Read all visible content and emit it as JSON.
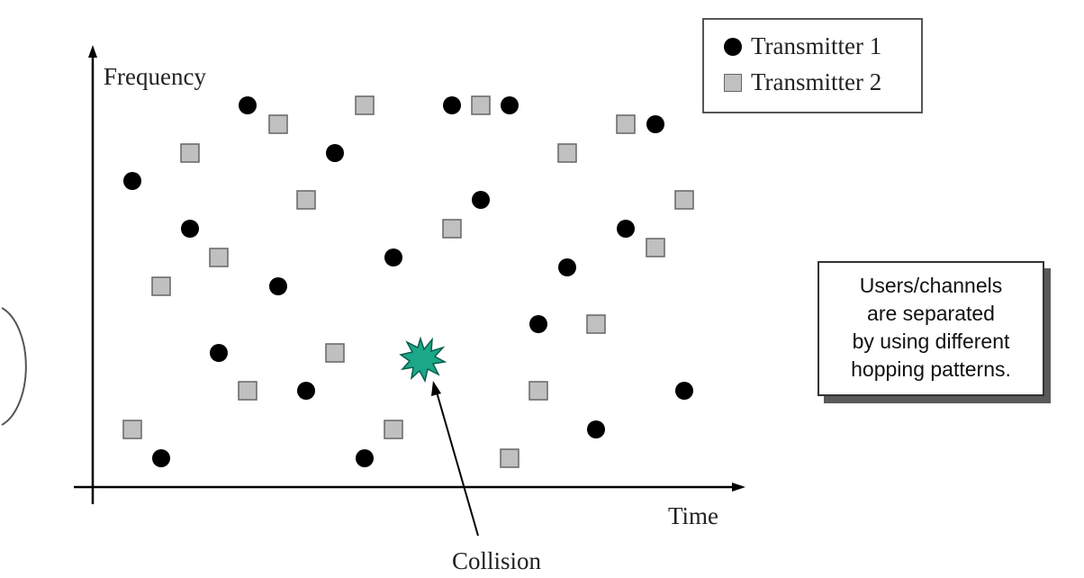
{
  "axes": {
    "y_label": "Frequency",
    "x_label": "Time"
  },
  "legend": {
    "series_1": "Transmitter 1",
    "series_2": "Transmitter 2"
  },
  "note": {
    "lines": [
      "Users/channels",
      "are separated",
      "by using different",
      "hopping patterns."
    ]
  },
  "collision": {
    "label": "Collision",
    "color": "#1aa889"
  },
  "colors": {
    "transmitter_1": "#000000",
    "transmitter_2_fill": "#c0c0c0",
    "transmitter_2_stroke": "#666666"
  }
}
